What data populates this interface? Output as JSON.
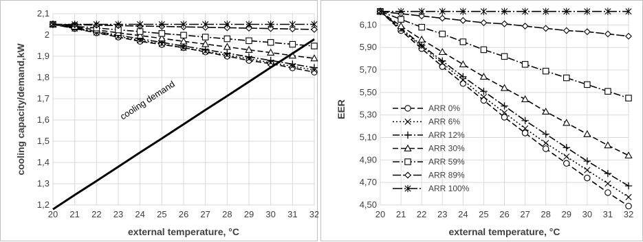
{
  "chart_data": [
    {
      "type": "line",
      "xlabel": "external temperature, °C",
      "ylabel": "cooling capacity/demand,kW",
      "xlim": [
        20,
        32
      ],
      "ylim": [
        1.2,
        2.1
      ],
      "grid": true,
      "x_ticks": [
        "20",
        "21",
        "22",
        "23",
        "24",
        "25",
        "26",
        "27",
        "28",
        "29",
        "30",
        "31",
        "32"
      ],
      "y_ticks": [
        "1,2",
        "1,3",
        "1,4",
        "1,5",
        "1,6",
        "1,7",
        "1,8",
        "1,9",
        "2",
        "2,1"
      ],
      "x": [
        20,
        21,
        22,
        23,
        24,
        25,
        26,
        27,
        28,
        29,
        30,
        31,
        32
      ],
      "series": [
        {
          "name": "ARR 0%",
          "marker": "circle",
          "dash": "8,4",
          "values": [
            2.05,
            2.03,
            2.01,
            1.99,
            1.97,
            1.955,
            1.94,
            1.92,
            1.9,
            1.88,
            1.865,
            1.845,
            1.825
          ]
        },
        {
          "name": "ARR 6%",
          "marker": "x",
          "dash": "2,3",
          "values": [
            2.05,
            2.03,
            2.012,
            1.993,
            1.975,
            1.958,
            1.94,
            1.923,
            1.905,
            1.888,
            1.87,
            1.853,
            1.835
          ]
        },
        {
          "name": "ARR 12%",
          "marker": "plus",
          "dash": "10,3,2,3",
          "values": [
            2.05,
            2.033,
            2.016,
            1.999,
            1.982,
            1.965,
            1.948,
            1.931,
            1.914,
            1.897,
            1.88,
            1.863,
            1.846
          ]
        },
        {
          "name": "ARR 30%",
          "marker": "triangle",
          "dash": "8,4",
          "values": [
            2.05,
            2.037,
            2.024,
            2.01,
            1.997,
            1.984,
            1.97,
            1.957,
            1.944,
            1.93,
            1.917,
            1.903,
            1.89
          ]
        },
        {
          "name": "ARR 59%",
          "marker": "square",
          "dash": "10,3,2,3",
          "values": [
            2.05,
            2.041,
            2.033,
            2.024,
            2.016,
            2.007,
            1.999,
            1.99,
            1.982,
            1.973,
            1.965,
            1.956,
            1.948
          ]
        },
        {
          "name": "ARR 89%",
          "marker": "diamond",
          "dash": "12,3",
          "values": [
            2.05,
            2.048,
            2.046,
            2.044,
            2.042,
            2.04,
            2.038,
            2.036,
            2.034,
            2.032,
            2.03,
            2.028,
            2.026
          ]
        },
        {
          "name": "ARR 100%",
          "marker": "asterisk",
          "dash": "14,3,2,3",
          "values": [
            2.05,
            2.05,
            2.05,
            2.05,
            2.05,
            2.05,
            2.05,
            2.05,
            2.05,
            2.05,
            2.05,
            2.05,
            2.05
          ]
        },
        {
          "name": "cooling demand",
          "marker": "none",
          "dash": "",
          "width": 3,
          "values": [
            1.18,
            1.247,
            1.313,
            1.38,
            1.447,
            1.513,
            1.58,
            1.647,
            1.713,
            1.78,
            1.847,
            1.913,
            1.98
          ]
        }
      ],
      "annotations": [
        "cooling demand"
      ]
    },
    {
      "type": "line",
      "xlabel": "external temperature, °C",
      "ylabel": "EER",
      "xlim": [
        20,
        32
      ],
      "ylim": [
        4.5,
        6.2
      ],
      "grid": true,
      "x_ticks": [
        "20",
        "21",
        "22",
        "23",
        "24",
        "25",
        "26",
        "27",
        "28",
        "29",
        "30",
        "31",
        "32"
      ],
      "y_ticks": [
        "4,50",
        "4,70",
        "4,90",
        "5,10",
        "5,30",
        "5,50",
        "5,70",
        "5,90",
        "6,10"
      ],
      "y_tick_values": [
        4.5,
        4.7,
        4.9,
        5.1,
        5.3,
        5.5,
        5.7,
        5.9,
        6.1
      ],
      "x": [
        20,
        21,
        22,
        23,
        24,
        25,
        26,
        27,
        28,
        29,
        30,
        31,
        32
      ],
      "legend": "center-left",
      "series": [
        {
          "name": "ARR 0%",
          "marker": "circle",
          "dash": "8,4",
          "values": [
            6.22,
            6.05,
            5.89,
            5.73,
            5.58,
            5.43,
            5.28,
            5.14,
            5.0,
            4.87,
            4.74,
            4.61,
            4.49
          ]
        },
        {
          "name": "ARR 6%",
          "marker": "x",
          "dash": "2,3",
          "values": [
            6.22,
            6.06,
            5.91,
            5.76,
            5.61,
            5.46,
            5.32,
            5.18,
            5.05,
            4.93,
            4.81,
            4.69,
            4.57
          ]
        },
        {
          "name": "ARR 12%",
          "marker": "plus",
          "dash": "10,3,2,3",
          "values": [
            6.22,
            6.07,
            5.92,
            5.78,
            5.64,
            5.51,
            5.38,
            5.25,
            5.13,
            5.01,
            4.89,
            4.78,
            4.67
          ]
        },
        {
          "name": "ARR 30%",
          "marker": "triangle",
          "dash": "8,4",
          "values": [
            6.22,
            6.09,
            5.97,
            5.86,
            5.75,
            5.64,
            5.54,
            5.44,
            5.33,
            5.23,
            5.13,
            5.03,
            4.94
          ]
        },
        {
          "name": "ARR 59%",
          "marker": "square",
          "dash": "10,3,2,3",
          "values": [
            6.22,
            6.15,
            6.08,
            6.02,
            5.95,
            5.88,
            5.82,
            5.75,
            5.69,
            5.63,
            5.57,
            5.51,
            5.45
          ]
        },
        {
          "name": "ARR 89%",
          "marker": "diamond",
          "dash": "12,3",
          "values": [
            6.22,
            6.2,
            6.18,
            6.16,
            6.14,
            6.12,
            6.11,
            6.09,
            6.07,
            6.05,
            6.04,
            6.02,
            6.0
          ]
        },
        {
          "name": "ARR 100%",
          "marker": "asterisk",
          "dash": "14,3,2,3",
          "values": [
            6.22,
            6.22,
            6.22,
            6.22,
            6.22,
            6.22,
            6.22,
            6.22,
            6.22,
            6.22,
            6.22,
            6.22,
            6.22
          ]
        }
      ]
    }
  ]
}
